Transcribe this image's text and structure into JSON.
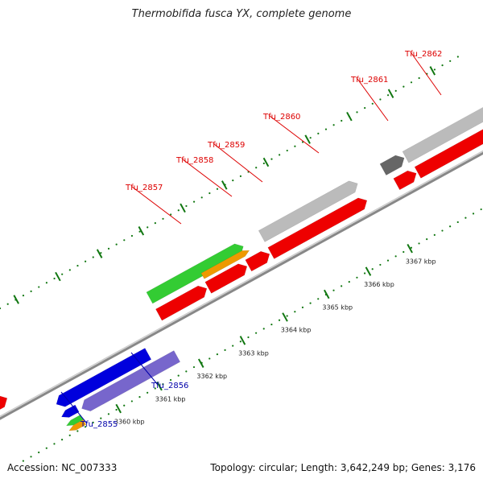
{
  "title": "Thermobifida fusca YX, complete genome",
  "footer": {
    "accession": "Accession: NC_007333",
    "summary": "Topology: circular; Length: 3,642,249 bp; Genes: 3,176"
  },
  "colors": {
    "red": "#ee0000",
    "green": "#33cc33",
    "orange": "#ee9900",
    "blue": "#0000dd",
    "purple": "#7766cc",
    "lightgray": "#bbbbbb",
    "darkgray": "#666666",
    "tick": "#117711",
    "red_label": "#dd0000",
    "blue_label": "#0000aa"
  },
  "ticks": [
    {
      "label": "3360 kbp"
    },
    {
      "label": "3361 kbp"
    },
    {
      "label": "3362 kbp"
    },
    {
      "label": "3363 kbp"
    },
    {
      "label": "3364 kbp"
    },
    {
      "label": "3365 kbp"
    },
    {
      "label": "3366 kbp"
    },
    {
      "label": "3367 kbp"
    }
  ],
  "gene_labels": [
    {
      "text": "Tfu_2855",
      "color": "blue"
    },
    {
      "text": "Tfu_2856",
      "color": "blue"
    },
    {
      "text": "Tfu_2857",
      "color": "red"
    },
    {
      "text": "Tfu_2858",
      "color": "red"
    },
    {
      "text": "Tfu_2859",
      "color": "red"
    },
    {
      "text": "Tfu_2860",
      "color": "red"
    },
    {
      "text": "Tfu_2861",
      "color": "red"
    },
    {
      "text": "Tfu_2862",
      "color": "red"
    }
  ]
}
